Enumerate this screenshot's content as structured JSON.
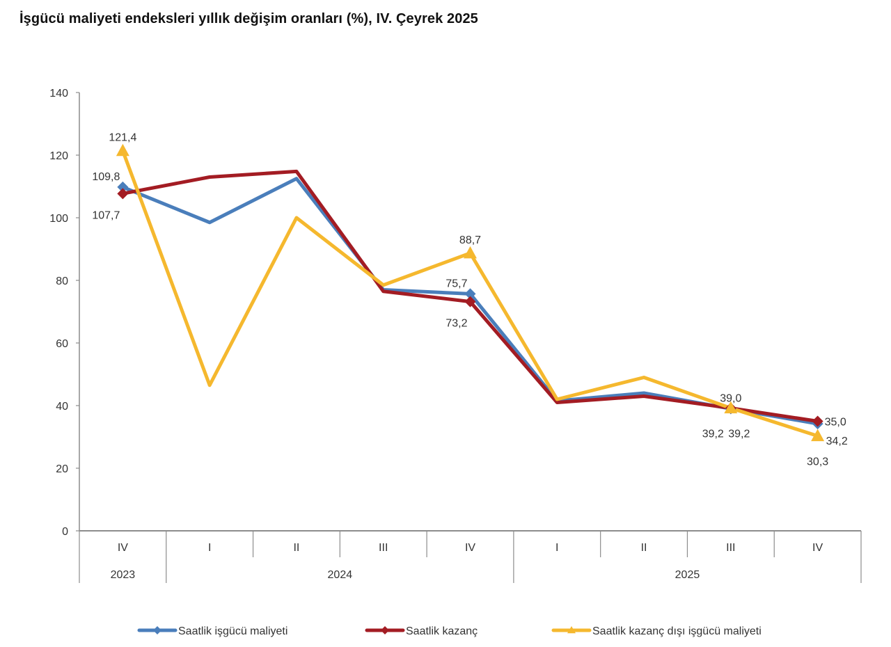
{
  "chart_data": {
    "type": "line",
    "title": "İşgücü maliyeti endeksleri yıllık değişim oranları (%), IV. Çeyrek 2025",
    "xlabel": "",
    "ylabel": "",
    "ylim": [
      0,
      140
    ],
    "yticks": [
      0,
      20,
      40,
      60,
      80,
      100,
      120,
      140
    ],
    "grid": false,
    "legend_position": "bottom",
    "categories": [
      "IV",
      "I",
      "II",
      "III",
      "IV",
      "I",
      "II",
      "III",
      "IV"
    ],
    "category_groups": [
      {
        "label": "2023",
        "span": 1
      },
      {
        "label": "2024",
        "span": 4
      },
      {
        "label": "2025",
        "span": 4
      }
    ],
    "series": [
      {
        "name": "Saatlik işgücü maliyeti",
        "color": "#4a7ebb",
        "marker": "diamond",
        "values": [
          109.8,
          98.5,
          112.5,
          77.0,
          75.7,
          41.5,
          44.0,
          39.0,
          34.2
        ]
      },
      {
        "name": "Saatlik kazanç",
        "color": "#a31c23",
        "marker": "diamond",
        "values": [
          107.7,
          113.0,
          114.8,
          76.5,
          73.2,
          41.0,
          43.0,
          39.2,
          35.0
        ]
      },
      {
        "name": "Saatlik kazanç dışı işgücü maliyeti",
        "color": "#f5b82e",
        "marker": "triangle",
        "values": [
          121.4,
          46.5,
          100.0,
          78.5,
          88.7,
          42.0,
          49.0,
          39.2,
          30.3
        ]
      }
    ],
    "annotations": [
      {
        "text": "121,4",
        "series": 2,
        "index": 0,
        "pos": "above"
      },
      {
        "text": "109,8",
        "series": 0,
        "index": 0,
        "pos": "above-left"
      },
      {
        "text": "107,7",
        "series": 1,
        "index": 0,
        "pos": "below-left"
      },
      {
        "text": "88,7",
        "series": 2,
        "index": 4,
        "pos": "above"
      },
      {
        "text": "75,7",
        "series": 0,
        "index": 4,
        "pos": "above-left"
      },
      {
        "text": "73,2",
        "series": 1,
        "index": 4,
        "pos": "below-left"
      },
      {
        "text": "39,0",
        "series": 0,
        "index": 7,
        "pos": "above"
      },
      {
        "text": "39,2",
        "series": 1,
        "index": 7,
        "pos": "below-left"
      },
      {
        "text": "39,2",
        "series": 2,
        "index": 7,
        "pos": "below-right"
      },
      {
        "text": "35,0",
        "series": 1,
        "index": 8,
        "pos": "right"
      },
      {
        "text": "34,2",
        "series": 0,
        "index": 8,
        "pos": "right-below"
      },
      {
        "text": "30,3",
        "series": 2,
        "index": 8,
        "pos": "below"
      }
    ]
  }
}
